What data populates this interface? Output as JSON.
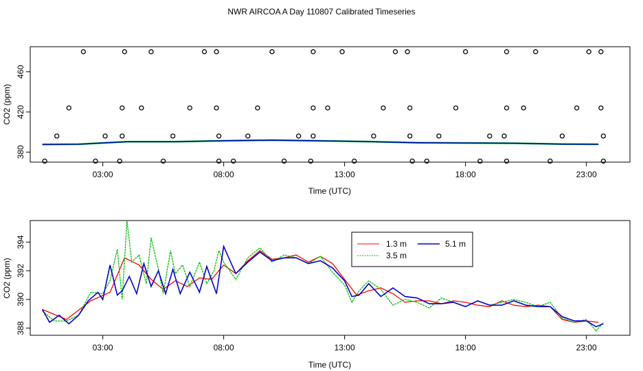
{
  "figure": {
    "title": "NWR AIRCOA A  Day 110807  Calibrated Timeseries"
  },
  "chart_data": [
    {
      "type": "scatter",
      "id": "top",
      "xlabel": "Time (UTC)",
      "ylabel": "CO2 (ppm)",
      "xlim": [
        0.0,
        24.8
      ],
      "ylim": [
        370,
        485
      ],
      "xticks": [
        3,
        8,
        13,
        18,
        23
      ],
      "xtick_labels": [
        "03:00",
        "08:00",
        "13:00",
        "18:00",
        "23:00"
      ],
      "yticks": [
        380,
        420,
        460
      ],
      "ytick_labels": [
        "380",
        "420",
        "460"
      ],
      "series": [
        {
          "name": "1.3 m",
          "color": "#ff0000"
        },
        {
          "name": "3.5 m",
          "color": "#00c000"
        },
        {
          "name": "5.1 m",
          "color": "#0000cc"
        }
      ],
      "outliers": [
        {
          "x": 2.2,
          "y": 480
        },
        {
          "x": 3.9,
          "y": 480
        },
        {
          "x": 5.0,
          "y": 480
        },
        {
          "x": 7.2,
          "y": 480
        },
        {
          "x": 7.7,
          "y": 480
        },
        {
          "x": 10.0,
          "y": 480
        },
        {
          "x": 11.7,
          "y": 480
        },
        {
          "x": 12.9,
          "y": 480
        },
        {
          "x": 15.1,
          "y": 480
        },
        {
          "x": 15.6,
          "y": 480
        },
        {
          "x": 18.0,
          "y": 480
        },
        {
          "x": 19.7,
          "y": 480
        },
        {
          "x": 20.9,
          "y": 480
        },
        {
          "x": 23.1,
          "y": 480
        },
        {
          "x": 23.6,
          "y": 480
        },
        {
          "x": 1.6,
          "y": 424
        },
        {
          "x": 3.8,
          "y": 424
        },
        {
          "x": 4.6,
          "y": 424
        },
        {
          "x": 6.6,
          "y": 424
        },
        {
          "x": 7.7,
          "y": 424
        },
        {
          "x": 9.4,
          "y": 424
        },
        {
          "x": 11.7,
          "y": 424
        },
        {
          "x": 12.3,
          "y": 424
        },
        {
          "x": 14.6,
          "y": 424
        },
        {
          "x": 15.7,
          "y": 424
        },
        {
          "x": 17.6,
          "y": 424
        },
        {
          "x": 19.7,
          "y": 424
        },
        {
          "x": 20.4,
          "y": 424
        },
        {
          "x": 22.6,
          "y": 424
        },
        {
          "x": 23.6,
          "y": 424
        },
        {
          "x": 1.1,
          "y": 396
        },
        {
          "x": 3.1,
          "y": 396
        },
        {
          "x": 3.8,
          "y": 396
        },
        {
          "x": 5.9,
          "y": 396
        },
        {
          "x": 7.8,
          "y": 396
        },
        {
          "x": 9.0,
          "y": 396
        },
        {
          "x": 11.1,
          "y": 396
        },
        {
          "x": 11.7,
          "y": 396
        },
        {
          "x": 14.2,
          "y": 396
        },
        {
          "x": 15.7,
          "y": 396
        },
        {
          "x": 16.9,
          "y": 396
        },
        {
          "x": 19.0,
          "y": 396
        },
        {
          "x": 19.6,
          "y": 396
        },
        {
          "x": 22.0,
          "y": 396
        },
        {
          "x": 23.7,
          "y": 396
        },
        {
          "x": 0.6,
          "y": 371
        },
        {
          "x": 2.7,
          "y": 371
        },
        {
          "x": 3.7,
          "y": 371
        },
        {
          "x": 5.5,
          "y": 371
        },
        {
          "x": 7.8,
          "y": 371
        },
        {
          "x": 8.4,
          "y": 371
        },
        {
          "x": 10.5,
          "y": 371
        },
        {
          "x": 11.6,
          "y": 371
        },
        {
          "x": 13.4,
          "y": 371
        },
        {
          "x": 15.8,
          "y": 371
        },
        {
          "x": 16.4,
          "y": 371
        },
        {
          "x": 18.6,
          "y": 371
        },
        {
          "x": 19.7,
          "y": 371
        },
        {
          "x": 21.5,
          "y": 371
        },
        {
          "x": 23.7,
          "y": 371
        }
      ],
      "line_x": [
        0.5,
        2,
        4,
        6,
        8,
        10,
        12,
        14,
        16,
        18,
        20,
        22,
        23.5
      ],
      "line_y": [
        387.6,
        387.9,
        390.3,
        390.4,
        391.3,
        391.9,
        391.2,
        390.5,
        389.3,
        389.1,
        388.8,
        388.0,
        387.8
      ]
    },
    {
      "type": "line",
      "id": "bottom",
      "xlabel": "Time (UTC)",
      "ylabel": "CO2 (ppm)",
      "xlim": [
        0.0,
        24.8
      ],
      "ylim": [
        387.5,
        395.5
      ],
      "xticks": [
        3,
        8,
        13,
        18,
        23
      ],
      "xtick_labels": [
        "03:00",
        "08:00",
        "13:00",
        "18:00",
        "23:00"
      ],
      "yticks": [
        388,
        390,
        392,
        394
      ],
      "ytick_labels": [
        "388",
        "390",
        "392",
        "394"
      ],
      "legend": {
        "position": "top-center",
        "entries": [
          "1.3 m",
          "3.5 m",
          "5.1 m"
        ]
      },
      "series": [
        {
          "name": "1.3 m",
          "color": "#ff0000",
          "x": [
            0.5,
            1.5,
            2.5,
            3.3,
            3.9,
            4.5,
            5.0,
            5.5,
            6.0,
            6.5,
            7.0,
            7.5,
            8.0,
            8.5,
            9.0,
            9.5,
            10.0,
            10.5,
            11.0,
            11.5,
            12.0,
            12.5,
            13.0,
            13.5,
            14.0,
            14.5,
            15.0,
            15.5,
            16.0,
            16.5,
            17.0,
            17.5,
            18.0,
            18.5,
            19.0,
            19.5,
            20.0,
            20.5,
            21.0,
            21.5,
            22.0,
            22.5,
            23.0,
            23.5
          ],
          "y": [
            389.3,
            388.6,
            389.9,
            390.5,
            392.9,
            392.4,
            391.4,
            390.7,
            391.3,
            390.9,
            391.5,
            391.4,
            392.4,
            391.8,
            392.7,
            393.4,
            392.8,
            392.9,
            393.1,
            392.6,
            393.0,
            392.5,
            391.4,
            390.3,
            390.6,
            390.8,
            390.4,
            389.8,
            389.9,
            389.9,
            389.7,
            389.9,
            389.8,
            389.6,
            389.5,
            389.9,
            389.6,
            389.5,
            389.6,
            389.5,
            388.6,
            388.4,
            388.5,
            388.4
          ]
        },
        {
          "name": "3.5 m",
          "color": "#00c000",
          "x": [
            0.5,
            1.0,
            1.5,
            2.0,
            2.5,
            3.0,
            3.3,
            3.6,
            3.8,
            4.0,
            4.2,
            4.5,
            4.8,
            5.0,
            5.3,
            5.5,
            5.8,
            6.0,
            6.3,
            6.6,
            7.0,
            7.3,
            7.6,
            7.8,
            8.0,
            8.5,
            9.0,
            9.5,
            10.0,
            10.5,
            11.0,
            11.5,
            12.0,
            12.5,
            13.0,
            13.3,
            13.6,
            14.0,
            14.5,
            15.0,
            15.5,
            16.0,
            16.5,
            17.0,
            17.5,
            18.0,
            18.5,
            19.0,
            19.5,
            20.0,
            20.5,
            21.0,
            21.5,
            22.0,
            22.5,
            23.0,
            23.4,
            23.7
          ],
          "y": [
            389.2,
            388.5,
            388.5,
            388.9,
            390.5,
            390.4,
            391.3,
            393.5,
            390.0,
            395.5,
            392.6,
            393.1,
            391.1,
            394.3,
            392.1,
            390.4,
            393.4,
            391.8,
            392.4,
            390.9,
            392.6,
            391.1,
            392.0,
            393.4,
            392.6,
            391.4,
            392.9,
            393.6,
            392.6,
            393.1,
            392.9,
            392.5,
            393.0,
            391.9,
            391.0,
            389.8,
            390.6,
            391.3,
            390.7,
            389.6,
            390.0,
            389.8,
            389.4,
            390.1,
            389.8,
            389.5,
            389.9,
            389.6,
            389.8,
            390.0,
            389.8,
            389.5,
            389.8,
            388.7,
            388.4,
            388.6,
            387.8,
            388.4
          ]
        },
        {
          "name": "5.1 m",
          "color": "#0000cc",
          "x": [
            0.5,
            0.8,
            1.2,
            1.6,
            2.0,
            2.4,
            2.8,
            3.0,
            3.3,
            3.6,
            3.8,
            4.1,
            4.4,
            4.7,
            5.0,
            5.3,
            5.6,
            5.9,
            6.2,
            6.6,
            7.0,
            7.3,
            7.7,
            8.0,
            8.5,
            9.0,
            9.5,
            10.0,
            10.5,
            11.0,
            11.5,
            12.0,
            12.5,
            13.0,
            13.3,
            13.6,
            14.0,
            14.5,
            15.0,
            15.5,
            16.0,
            16.5,
            17.0,
            17.5,
            18.0,
            18.5,
            19.0,
            19.5,
            20.0,
            20.5,
            21.0,
            21.5,
            22.0,
            22.5,
            23.0,
            23.4,
            23.7
          ],
          "y": [
            389.3,
            388.4,
            388.9,
            388.3,
            388.9,
            389.9,
            390.5,
            390.0,
            392.4,
            390.3,
            390.6,
            391.6,
            390.4,
            392.5,
            390.9,
            392.0,
            390.4,
            392.1,
            390.4,
            391.9,
            390.5,
            392.3,
            390.4,
            393.7,
            391.8,
            392.6,
            393.3,
            392.7,
            392.9,
            392.9,
            392.5,
            392.7,
            392.2,
            391.3,
            390.2,
            390.3,
            391.1,
            390.2,
            390.8,
            390.2,
            390.1,
            389.7,
            389.7,
            389.8,
            389.5,
            389.9,
            389.6,
            389.6,
            389.9,
            389.6,
            389.5,
            389.5,
            388.8,
            388.5,
            388.5,
            388.1,
            388.3
          ]
        }
      ]
    }
  ]
}
